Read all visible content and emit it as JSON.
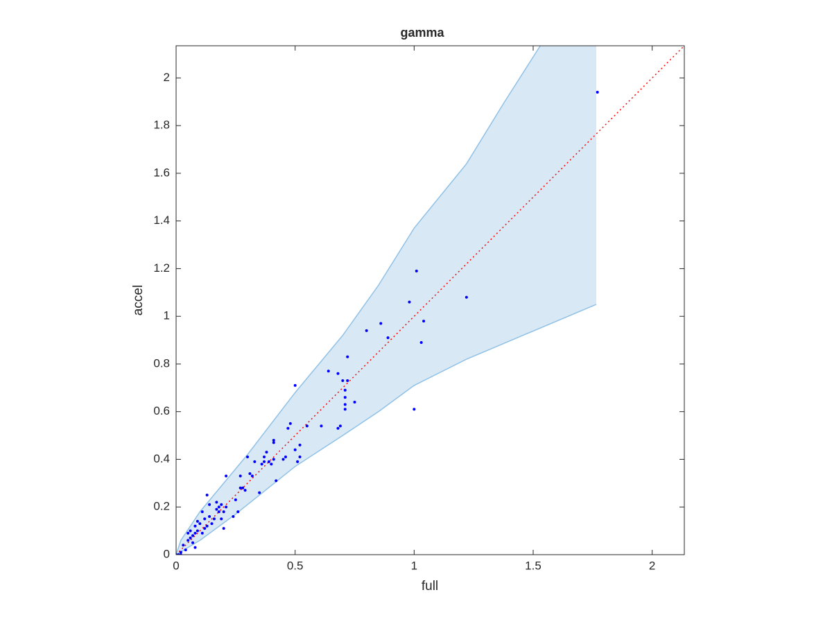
{
  "chart_data": {
    "type": "scatter",
    "title": "gamma",
    "x_label": "full",
    "y_label": "accel",
    "xlim": [
      0,
      2.135
    ],
    "ylim": [
      0,
      2.135
    ],
    "xticks": [
      0,
      0.5,
      1,
      1.5,
      2
    ],
    "yticks": [
      0,
      0.2,
      0.4,
      0.6,
      0.8,
      1,
      1.2,
      1.4,
      1.6,
      1.8,
      2
    ],
    "color": "#0000ff",
    "x": [
      0.0,
      0.01,
      0.02,
      0.02,
      0.03,
      0.04,
      0.05,
      0.05,
      0.06,
      0.06,
      0.07,
      0.07,
      0.08,
      0.08,
      0.08,
      0.09,
      0.09,
      0.1,
      0.11,
      0.11,
      0.12,
      0.12,
      0.13,
      0.13,
      0.14,
      0.14,
      0.15,
      0.16,
      0.17,
      0.17,
      0.18,
      0.18,
      0.19,
      0.19,
      0.2,
      0.2,
      0.21,
      0.21,
      0.24,
      0.25,
      0.26,
      0.27,
      0.27,
      0.28,
      0.29,
      0.3,
      0.31,
      0.32,
      0.33,
      0.35,
      0.36,
      0.37,
      0.37,
      0.38,
      0.39,
      0.4,
      0.41,
      0.41,
      0.41,
      0.42,
      0.45,
      0.46,
      0.47,
      0.48,
      0.5,
      0.5,
      0.51,
      0.52,
      0.52,
      0.55,
      0.61,
      0.64,
      0.68,
      0.69,
      0.68,
      0.7,
      0.72,
      0.71,
      0.71,
      0.71,
      0.71,
      0.72,
      0.75,
      0.8,
      0.86,
      0.89,
      0.98,
      1.0,
      1.01,
      1.03,
      1.04,
      1.22,
      1.77
    ],
    "y": [
      0.0,
      0.0,
      0.0,
      0.01,
      0.04,
      0.02,
      0.06,
      0.09,
      0.07,
      0.1,
      0.08,
      0.05,
      0.03,
      0.12,
      0.09,
      0.14,
      0.1,
      0.13,
      0.09,
      0.18,
      0.11,
      0.15,
      0.12,
      0.25,
      0.16,
      0.21,
      0.13,
      0.15,
      0.19,
      0.22,
      0.18,
      0.2,
      0.15,
      0.21,
      0.18,
      0.11,
      0.2,
      0.33,
      0.16,
      0.23,
      0.18,
      0.28,
      0.33,
      0.28,
      0.27,
      0.41,
      0.34,
      0.33,
      0.39,
      0.26,
      0.38,
      0.39,
      0.41,
      0.43,
      0.39,
      0.38,
      0.47,
      0.48,
      0.4,
      0.31,
      0.4,
      0.41,
      0.53,
      0.55,
      0.44,
      0.71,
      0.39,
      0.41,
      0.46,
      0.54,
      0.54,
      0.77,
      0.53,
      0.54,
      0.76,
      0.73,
      0.73,
      0.69,
      0.66,
      0.63,
      0.61,
      0.83,
      0.64,
      0.94,
      0.97,
      0.91,
      1.06,
      0.61,
      1.19,
      0.89,
      0.98,
      1.08,
      1.94
    ],
    "band": {
      "fill": "#d9e8f5",
      "edge_color": "#8fc1e6",
      "upper": {
        "x": [
          0,
          0.02,
          0.1,
          0.2,
          0.3,
          0.5,
          0.7,
          0.85,
          1.0,
          1.22,
          1.38,
          1.53
        ],
        "y": [
          0,
          0.06,
          0.18,
          0.3,
          0.42,
          0.68,
          0.92,
          1.13,
          1.37,
          1.64,
          1.9,
          2.135
        ]
      },
      "lower": {
        "x": [
          0,
          0.1,
          0.25,
          0.5,
          0.7,
          0.85,
          1.0,
          1.22,
          1.765
        ],
        "y": [
          0,
          0.06,
          0.17,
          0.37,
          0.5,
          0.6,
          0.71,
          0.82,
          1.05
        ]
      }
    },
    "reference_line": {
      "x": [
        0,
        2.135
      ],
      "y": [
        0,
        2.135
      ],
      "color": "#ff0000"
    }
  }
}
